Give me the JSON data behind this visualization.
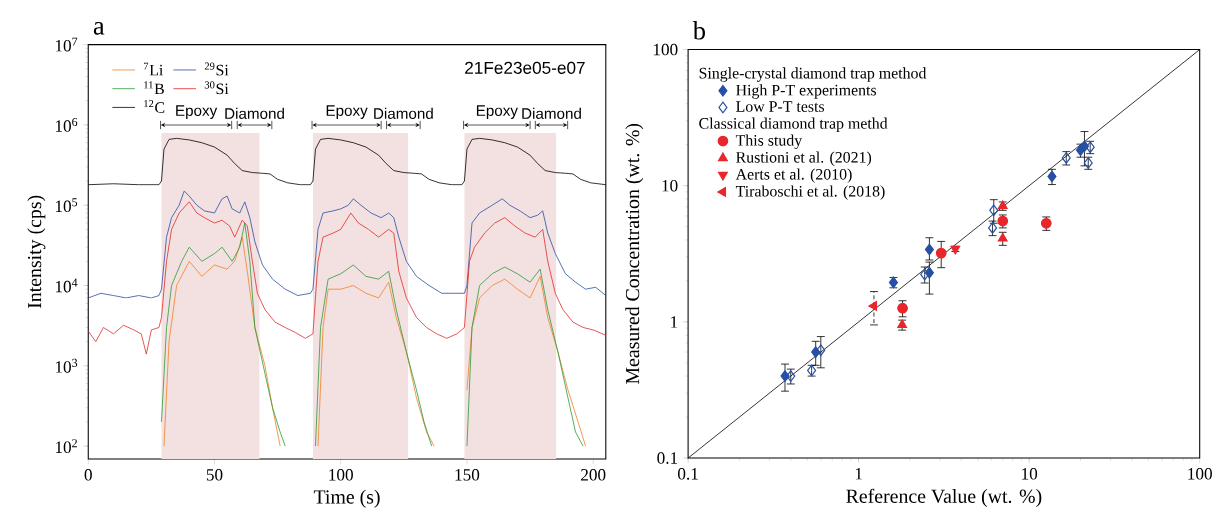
{
  "chart_data": [
    {
      "type": "line",
      "title": "a",
      "subtitle": "21Fe23e05-e07",
      "xlabel": "Time (s)",
      "ylabel": "Intensity (cps)",
      "xlim": [
        0,
        205
      ],
      "xticks": [
        0,
        50,
        100,
        150,
        200
      ],
      "ylim": [
        69,
        10000000
      ],
      "yticks": [
        {
          "value": 100,
          "label": "10$^{2}$"
        },
        {
          "value": 1000,
          "label": "10$^{3}$"
        },
        {
          "value": 10000,
          "label": "10$^{4}$"
        },
        {
          "value": 100000,
          "label": "10$^{5}$"
        },
        {
          "value": 1000000,
          "label": "10$^{6}$"
        },
        {
          "value": 10000000,
          "label": "10$^{7}$"
        }
      ],
      "log": "y",
      "legend": "top left",
      "bands": [
        {
          "axis": "x",
          "from": 29,
          "to": 67.8,
          "color": "#f3e1e1"
        },
        {
          "axis": "x",
          "from": 89,
          "to": 126.7,
          "color": "#f3e1e1"
        },
        {
          "axis": "x",
          "from": 149,
          "to": 185.3,
          "color": "#f3e1e1"
        }
      ],
      "annotations": [
        "Epoxy",
        "Diamond",
        "Epoxy",
        "Diamond",
        "Epoxy",
        "Diamond"
      ],
      "series": [
        {
          "name": "$^{7}$Li",
          "color": "#f28022",
          "x": [
            30,
            32,
            35,
            40,
            45,
            50,
            55,
            58,
            61,
            63,
            66,
            70,
            73,
            76,
            83,
            91,
            93,
            95,
            100,
            105,
            110,
            115,
            119,
            122,
            126,
            130,
            134,
            137,
            143,
            150,
            152,
            155,
            160,
            165,
            170,
            175,
            179,
            182,
            186,
            190,
            194,
            197
          ],
          "values": [
            100,
            2000,
            10000,
            20000,
            13000,
            18000,
            16000,
            20000,
            40000,
            15000,
            3000,
            1000,
            300,
            100,
            null,
            100,
            3000,
            9000,
            9000,
            10000,
            8000,
            7000,
            11000,
            4000,
            1500,
            400,
            150,
            100,
            null,
            500,
            3000,
            7000,
            10000,
            12000,
            9000,
            7000,
            13000,
            4000,
            1500,
            500,
            200,
            100
          ]
        },
        {
          "name": "$^{29}$Si",
          "color": "#2a4ea0",
          "x": [
            0,
            5,
            10,
            15,
            20,
            25,
            28,
            29,
            31,
            33,
            36,
            38,
            40,
            43,
            46,
            50,
            53,
            55,
            57,
            60,
            62,
            64,
            66,
            69,
            73,
            78,
            83,
            88,
            89,
            91,
            93,
            97,
            100,
            103,
            105,
            108,
            112,
            116,
            119,
            121,
            123,
            126,
            130,
            135,
            140,
            145,
            149,
            150,
            152,
            155,
            160,
            164,
            167,
            171,
            175,
            178,
            180,
            182,
            185,
            189,
            193,
            197,
            201,
            205
          ],
          "values": [
            7000,
            8000,
            7500,
            7000,
            7500,
            7000,
            7500,
            9000,
            40000,
            70000,
            100000,
            150000,
            130000,
            100000,
            85000,
            80000,
            120000,
            130000,
            90000,
            80000,
            110000,
            70000,
            35000,
            18000,
            12000,
            9000,
            7500,
            8000,
            9000,
            50000,
            80000,
            85000,
            90000,
            100000,
            120000,
            100000,
            80000,
            70000,
            80000,
            70000,
            40000,
            20000,
            13000,
            10000,
            8000,
            8000,
            8000,
            10000,
            60000,
            80000,
            100000,
            120000,
            100000,
            85000,
            70000,
            75000,
            85000,
            45000,
            25000,
            14000,
            11000,
            9000,
            9500,
            7500
          ]
        },
        {
          "name": "$^{11}$B",
          "color": "#2a9a3a",
          "x": [
            29,
            31,
            33,
            37,
            40,
            45,
            50,
            53,
            57,
            60,
            62,
            64,
            66,
            70,
            73,
            76,
            78,
            83,
            90,
            92,
            95,
            100,
            105,
            110,
            115,
            119,
            122,
            126,
            130,
            133,
            136,
            143,
            150,
            152,
            155,
            160,
            165,
            170,
            175,
            179,
            182,
            186,
            190,
            193,
            196
          ],
          "values": [
            200,
            3000,
            10000,
            20000,
            30000,
            20000,
            25000,
            30000,
            20000,
            30000,
            60000,
            20000,
            3000,
            800,
            300,
            150,
            100,
            null,
            100,
            3000,
            12000,
            14000,
            18000,
            13000,
            12000,
            15000,
            5000,
            1500,
            500,
            200,
            100,
            null,
            100,
            3000,
            10000,
            14000,
            17000,
            14000,
            11000,
            16000,
            5000,
            1500,
            400,
            150,
            100
          ]
        },
        {
          "name": "$^{30}$Si",
          "color": "#e32a2a",
          "x": [
            0,
            3,
            6,
            10,
            14,
            18,
            21,
            23,
            25,
            28,
            29,
            31,
            33,
            36,
            40,
            43,
            46,
            50,
            53,
            56,
            58,
            61,
            63,
            65,
            67,
            70,
            74,
            78,
            82,
            86,
            89,
            91,
            93,
            97,
            100,
            104,
            107,
            111,
            115,
            119,
            121,
            123,
            126,
            130,
            134,
            138,
            142,
            146,
            149,
            151,
            153,
            157,
            161,
            165,
            169,
            173,
            177,
            180,
            182,
            185,
            188,
            192,
            196,
            200,
            205
          ],
          "values": [
            2700,
            2000,
            3000,
            2500,
            3200,
            2800,
            2500,
            1400,
            2800,
            3000,
            4000,
            20000,
            50000,
            80000,
            110000,
            80000,
            70000,
            60000,
            65000,
            55000,
            40000,
            65000,
            55000,
            20000,
            8000,
            5000,
            3500,
            3000,
            2600,
            2200,
            2500,
            20000,
            40000,
            45000,
            50000,
            80000,
            60000,
            50000,
            40000,
            50000,
            45000,
            15000,
            7000,
            4000,
            3000,
            2500,
            2200,
            2500,
            3000,
            20000,
            30000,
            45000,
            60000,
            70000,
            55000,
            45000,
            40000,
            50000,
            20000,
            8000,
            5000,
            3500,
            3000,
            2800,
            2400
          ]
        },
        {
          "name": "$^{12}$C",
          "color": "#000000",
          "x": [
            0,
            10,
            20,
            28,
            29,
            30,
            32,
            35,
            40,
            45,
            50,
            55,
            58,
            61,
            65,
            69,
            72,
            75,
            79,
            84,
            88,
            89,
            90,
            92,
            95,
            100,
            105,
            110,
            115,
            118,
            121,
            125,
            129,
            132,
            135,
            139,
            144,
            148,
            149,
            150,
            152,
            155,
            160,
            165,
            170,
            175,
            178,
            181,
            185,
            189,
            192,
            195,
            199,
            205
          ],
          "values": [
            180000,
            185000,
            180000,
            180000,
            200000,
            500000,
            660000,
            680000,
            650000,
            600000,
            530000,
            420000,
            330000,
            270000,
            255000,
            250000,
            245000,
            210000,
            190000,
            180000,
            180000,
            200000,
            500000,
            660000,
            680000,
            650000,
            600000,
            530000,
            420000,
            330000,
            270000,
            255000,
            250000,
            245000,
            210000,
            190000,
            180000,
            180000,
            200000,
            500000,
            660000,
            680000,
            650000,
            600000,
            530000,
            420000,
            330000,
            270000,
            255000,
            250000,
            245000,
            210000,
            190000,
            180000
          ]
        }
      ]
    },
    {
      "type": "scatter",
      "title": "b",
      "xlabel": "Reference Value (wt. %)",
      "ylabel": "Measured Concentration (wt. %)",
      "xlim": [
        0.1,
        100
      ],
      "xticks": [
        0.1,
        1,
        10,
        100
      ],
      "ylim": [
        0.1,
        100
      ],
      "yticks": [
        0.1,
        1,
        10,
        100
      ],
      "log": "xy",
      "legend": "top left",
      "annotations": [
        "Single-crystal diamond trap method",
        "Classical diamond trap methd"
      ],
      "series": [
        {
          "name": "High P-T experiments",
          "color": "#2650a6",
          "marker": "diamond",
          "x": [
            0.37,
            0.56,
            1.6,
            2.6,
            2.6,
            13.6,
            20,
            21.1
          ],
          "values": [
            0.4,
            0.6,
            1.95,
            2.3,
            3.4,
            11.7,
            18.2,
            19.5
          ],
          "errors": [
            0.09,
            0.12,
            0.17,
            [
              1.6,
              2.75
            ],
            [
              2.85,
              4.15
            ],
            1.5,
            2,
            5.5
          ]
        },
        {
          "name": "Low P-T tests",
          "color": "#2650a6",
          "marker": "diamond",
          "x": [
            0.4,
            0.6,
            0.53,
            2.44,
            6.2,
            6.1,
            16.5,
            22.8,
            22.2
          ],
          "values": [
            0.4,
            0.62,
            0.44,
            2.23,
            6.6,
            4.9,
            16.0,
            19.2,
            14.7
          ],
          "errors": [
            0.05,
            0.16,
            0.04,
            0.3,
            1.3,
            0.6,
            1.8,
            2,
            1.5
          ]
        },
        {
          "name": "This study",
          "color": "#e8262b",
          "marker": "circle",
          "x": [
            1.81,
            3.05,
            7.0,
            12.6
          ],
          "values": [
            1.26,
            3.2,
            5.5,
            5.3
          ],
          "errors": [
            0.17,
            0.7,
            0.6,
            0.6
          ]
        },
        {
          "name": "Rustioni et al. (2021)",
          "color": "#e8262b",
          "marker": "triangle",
          "x": [
            1.8,
            7.0,
            7.0
          ],
          "values": [
            0.95,
            7.1,
            4.1
          ],
          "errors": [
            0.08,
            0.5,
            0.45
          ]
        },
        {
          "name": "Aerts et al. (2010)",
          "color": "#e8262b",
          "marker": "triangle",
          "x": [
            3.69
          ],
          "values": [
            3.44
          ],
          "errors": [
            0.15
          ]
        },
        {
          "name": "Tiraboschi et al. (2018)",
          "color": "#e8262b",
          "marker": "triangle",
          "x": [
            1.23
          ],
          "values": [
            1.31
          ],
          "errors": [
            0.36
          ]
        },
        {
          "type": "line",
          "color": "#000000",
          "marker": "none",
          "x": [
            0.1,
            100
          ],
          "values": [
            0.1,
            100
          ]
        }
      ]
    }
  ]
}
